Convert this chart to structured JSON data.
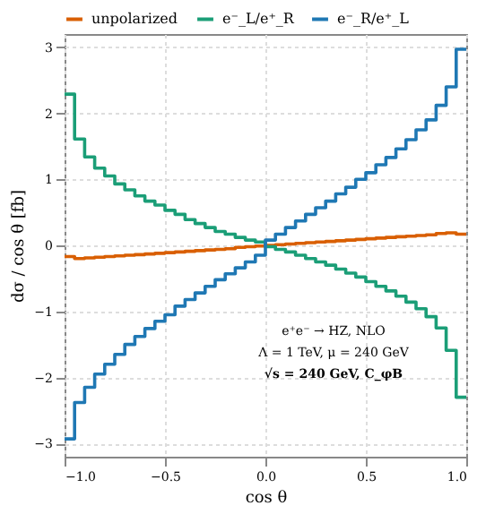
{
  "chart_data": {
    "type": "step",
    "xlabel": "cos θ",
    "ylabel": "dσ / cos θ [fb]",
    "x": [
      -1.0,
      -0.95,
      -0.9,
      -0.85,
      -0.8,
      -0.75,
      -0.7,
      -0.65,
      -0.6,
      -0.55,
      -0.5,
      -0.45,
      -0.4,
      -0.35,
      -0.3,
      -0.25,
      -0.2,
      -0.15,
      -0.1,
      -0.05,
      0.0,
      0.05,
      0.1,
      0.15,
      0.2,
      0.25,
      0.3,
      0.35,
      0.4,
      0.45,
      0.5,
      0.55,
      0.6,
      0.65,
      0.7,
      0.75,
      0.8,
      0.85,
      0.9,
      0.95,
      1.0
    ],
    "series": [
      {
        "name": "unpolarized",
        "color": "#d95f02",
        "values": [
          -0.17,
          -0.2,
          -0.19,
          -0.18,
          -0.17,
          -0.16,
          -0.15,
          -0.14,
          -0.13,
          -0.12,
          -0.11,
          -0.1,
          -0.09,
          -0.08,
          -0.07,
          -0.06,
          -0.05,
          -0.03,
          -0.02,
          -0.01,
          0.0,
          0.01,
          0.02,
          0.03,
          0.04,
          0.05,
          0.06,
          0.07,
          0.08,
          0.09,
          0.1,
          0.11,
          0.12,
          0.13,
          0.14,
          0.15,
          0.16,
          0.18,
          0.19,
          0.17,
          0.17
        ]
      },
      {
        "name": "e⁻_L/e⁺_R",
        "color": "#1b9e77",
        "values": [
          2.29,
          1.61,
          1.34,
          1.17,
          1.05,
          0.93,
          0.84,
          0.75,
          0.67,
          0.61,
          0.53,
          0.47,
          0.39,
          0.33,
          0.27,
          0.21,
          0.17,
          0.12,
          0.08,
          0.05,
          -0.02,
          -0.06,
          -0.1,
          -0.15,
          -0.2,
          -0.25,
          -0.3,
          -0.36,
          -0.42,
          -0.48,
          -0.55,
          -0.62,
          -0.69,
          -0.77,
          -0.86,
          -0.96,
          -1.08,
          -1.25,
          -1.59,
          -2.3,
          -2.3
        ]
      },
      {
        "name": "e⁻_R/e⁺_L",
        "color": "#1f78b4",
        "values": [
          -2.93,
          -2.38,
          -2.15,
          -1.95,
          -1.8,
          -1.65,
          -1.5,
          -1.38,
          -1.26,
          -1.15,
          -1.05,
          -0.92,
          -0.82,
          -0.72,
          -0.62,
          -0.52,
          -0.43,
          -0.34,
          -0.25,
          -0.15,
          0.08,
          0.17,
          0.27,
          0.37,
          0.47,
          0.57,
          0.67,
          0.78,
          0.88,
          1.0,
          1.1,
          1.22,
          1.33,
          1.46,
          1.6,
          1.75,
          1.9,
          2.12,
          2.4,
          2.97,
          2.97
        ]
      }
    ],
    "xlim": [
      -1.0,
      1.0
    ],
    "xticks": [
      {
        "value": -1.0,
        "label": "−1.0"
      },
      {
        "value": -0.5,
        "label": "−0.5"
      },
      {
        "value": 0.0,
        "label": "0.0"
      },
      {
        "value": 0.5,
        "label": "0.5"
      },
      {
        "value": 1.0,
        "label": "1.0"
      }
    ],
    "ylim": [
      -3.2,
      3.2
    ],
    "yticks": [
      {
        "value": -3,
        "label": "−3"
      },
      {
        "value": -2,
        "label": "−2"
      },
      {
        "value": -1,
        "label": "−1"
      },
      0,
      1,
      2,
      3
    ],
    "grid": true,
    "legend": "top",
    "annotations": [
      "e⁺e⁻ → HZ, NLO",
      "Λ = 1 TeV, μ = 240 GeV",
      "√s = 240 GeV, C_φB"
    ]
  }
}
